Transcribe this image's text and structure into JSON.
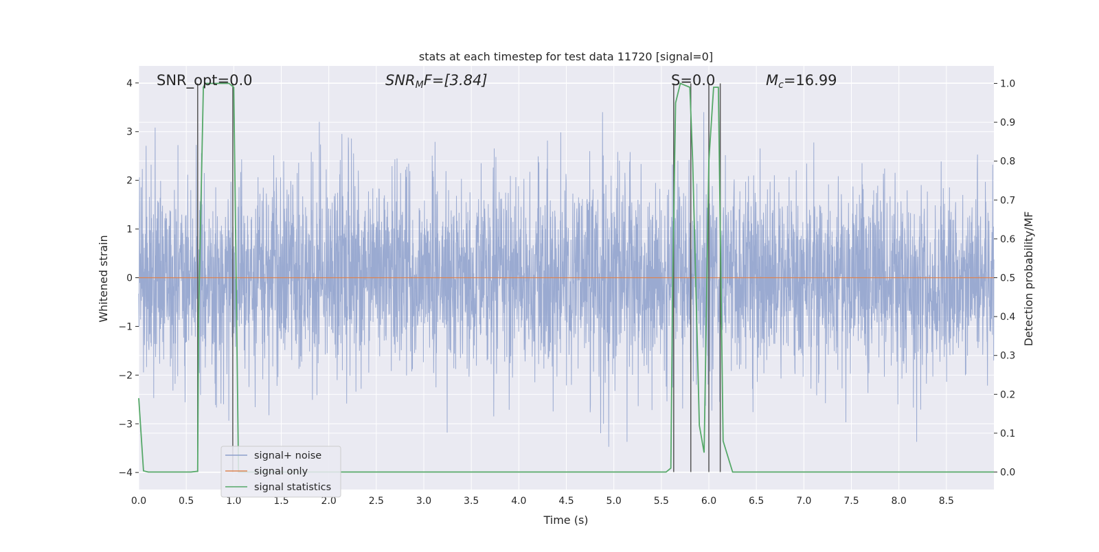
{
  "chart_data": {
    "type": "line",
    "title": "stats at each timestep for test data 11720 [signal=0]",
    "xlabel": "Time (s)",
    "ylabel": "Whitened strain",
    "y2label": "Detection probability/MF",
    "xlim": [
      0.0,
      9.0
    ],
    "ylim": [
      -4.35,
      4.35
    ],
    "y2lim": [
      -0.045,
      1.045
    ],
    "x_ticks": [
      "0.0",
      "0.5",
      "1.0",
      "1.5",
      "2.0",
      "2.5",
      "3.0",
      "3.5",
      "4.0",
      "4.5",
      "5.0",
      "5.5",
      "6.0",
      "6.5",
      "7.0",
      "7.5",
      "8.0",
      "8.5"
    ],
    "y_ticks": [
      "4",
      "3",
      "2",
      "1",
      "0",
      "−1",
      "−2",
      "−3",
      "−4"
    ],
    "y2_ticks": [
      "1.0",
      "0.9",
      "0.8",
      "0.7",
      "0.6",
      "0.5",
      "0.4",
      "0.3",
      "0.2",
      "0.1",
      "0.0"
    ],
    "grid": true,
    "legend_placement": "lower-left",
    "annotations": {
      "snr_opt": "SNR_opt=0.0",
      "snr_mf_base": "SNR",
      "snr_mf_sub": "M",
      "snr_mf_rest": "F=[3.84]",
      "s_label": "S=0.0",
      "mc_base": "M",
      "mc_sub": "c",
      "mc_rest": "=16.99"
    },
    "series": [
      {
        "name": "signal+ noise",
        "axis": "left",
        "color": "#8c9fcb",
        "description": "whitened strain noise, roughly Gaussian, spanning about -3.5 to 3.4"
      },
      {
        "name": "signal only",
        "axis": "left",
        "color": "#dd8452",
        "x": [
          0.0,
          9.0
        ],
        "y": [
          0.0,
          0.0
        ]
      },
      {
        "name": "signal statistics",
        "axis": "right",
        "color": "#55a868",
        "x": [
          0.0,
          0.05,
          0.1,
          0.55,
          0.62,
          0.63,
          0.68,
          0.7,
          0.95,
          1.0,
          1.02,
          1.05,
          1.1,
          5.55,
          5.6,
          5.62,
          5.65,
          5.7,
          5.8,
          5.83,
          5.9,
          5.95,
          6.0,
          6.05,
          6.1,
          6.15,
          6.25,
          9.0
        ],
        "y": [
          0.19,
          0.003,
          0.0,
          0.0,
          0.002,
          0.4,
          0.99,
          1.0,
          1.0,
          0.99,
          0.6,
          0.0,
          0.0,
          0.0,
          0.01,
          0.5,
          0.95,
          1.0,
          0.99,
          0.8,
          0.12,
          0.05,
          0.8,
          0.99,
          0.99,
          0.08,
          0.0,
          0.0
        ]
      }
    ],
    "vertical_lines": [
      0.62,
      0.99,
      5.63,
      5.81,
      6.0,
      6.12
    ]
  }
}
